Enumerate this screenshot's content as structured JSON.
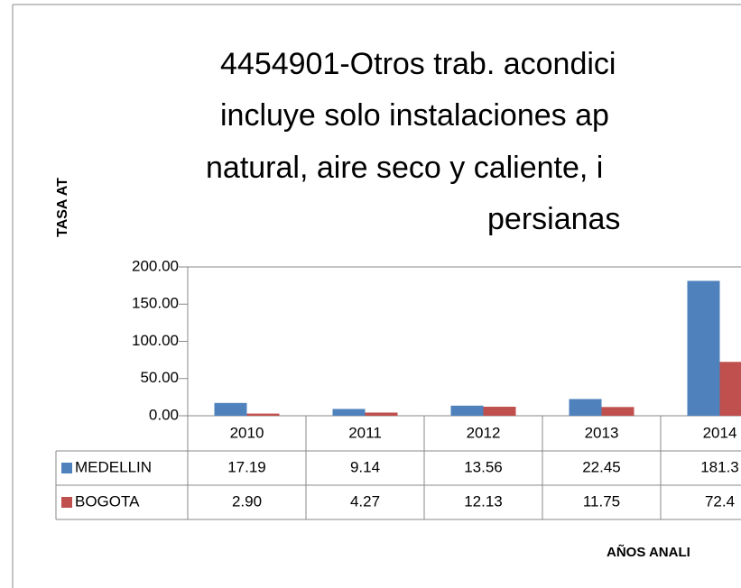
{
  "chart_data": {
    "type": "bar",
    "title": [
      "4454901-Otros trab. acondici",
      "incluye solo   instalaciones ap",
      "natural, aire seco y caliente, i",
      "persianas"
    ],
    "ylabel": "TASA AT",
    "xlabel": "AÑOS ANALI",
    "categories": [
      "2010",
      "2011",
      "2012",
      "2013",
      "2014"
    ],
    "series": [
      {
        "name": "MEDELLIN",
        "color": "#4f81bd",
        "values": [
          17.19,
          9.14,
          13.56,
          22.45,
          181.3
        ],
        "value_labels": [
          "17.19",
          "9.14",
          "13.56",
          "22.45",
          "181.3"
        ]
      },
      {
        "name": "BOGOTA",
        "color": "#c0504d",
        "values": [
          2.9,
          4.27,
          12.13,
          11.75,
          72.4
        ],
        "value_labels": [
          "2.90",
          "4.27",
          "12.13",
          "11.75",
          "72.4"
        ]
      }
    ],
    "ylim": [
      0,
      200
    ],
    "yticks": [
      {
        "value": 0,
        "label": "0.00"
      },
      {
        "value": 50,
        "label": "50.00"
      },
      {
        "value": 100,
        "label": "100.00"
      },
      {
        "value": 150,
        "label": "150.00"
      },
      {
        "value": 200,
        "label": "200.00"
      }
    ],
    "grid": false
  }
}
